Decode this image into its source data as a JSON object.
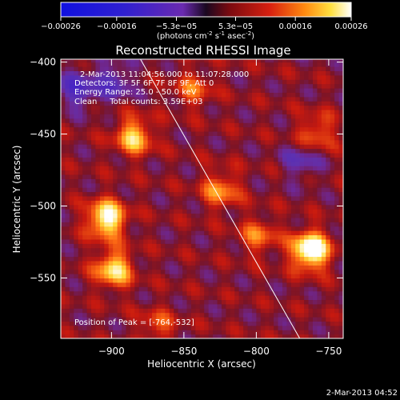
{
  "colorbar": {
    "ticks": [
      "-0.00026",
      "-0.00016",
      "-5.3e-05",
      "5.3e-05",
      "0.00016",
      "0.00026"
    ],
    "range": [
      -0.00026,
      0.00026
    ],
    "unit_label": "(photons cm",
    "unit_sup1": "-2",
    "unit_mid": " s",
    "unit_sup2": "-1",
    "unit_mid2": " asec",
    "unit_sup3": "-2",
    "unit_end": ")",
    "colormap": "RHESSI red/temperature (blue-purple negative to red-yellow-white positive)"
  },
  "chart_data": {
    "type": "heatmap",
    "title": "Reconstructed RHESSI Image",
    "xlabel": "Heliocentric X (arcsec)",
    "ylabel": "Heliocentric Y (arcsec)",
    "xlim": [
      -935,
      -740
    ],
    "ylim": [
      -592,
      -398
    ],
    "x_ticks": [
      -900,
      -850,
      -800,
      -750
    ],
    "y_ticks": [
      -400,
      -450,
      -500,
      -550
    ],
    "x_tick_labels": [
      "−900",
      "−850",
      "−800",
      "−750"
    ],
    "y_tick_labels": [
      "−400",
      "−450",
      "−500",
      "−550"
    ],
    "limb_line": [
      [
        -880,
        -398
      ],
      [
        -770,
        -592
      ]
    ],
    "sources": [
      {
        "x": -886,
        "y": -453,
        "value": 0.00016
      },
      {
        "x": -905,
        "y": -510,
        "value": 0.00022
      },
      {
        "x": -900,
        "y": -545,
        "value": 0.00018
      },
      {
        "x": -826,
        "y": -490,
        "value": 0.00012
      },
      {
        "x": -800,
        "y": -522,
        "value": 0.0001
      },
      {
        "x": -764,
        "y": -532,
        "value": 0.00026
      },
      {
        "x": -845,
        "y": -420,
        "value": 9e-05
      },
      {
        "x": -870,
        "y": -585,
        "value": 8e-05
      },
      {
        "x": -760,
        "y": -450,
        "value": 0.0001
      },
      {
        "x": -925,
        "y": -420,
        "value": -0.00012
      },
      {
        "x": -900,
        "y": -415,
        "value": -0.0001
      },
      {
        "x": -770,
        "y": -470,
        "value": -8e-05
      }
    ],
    "annotations": {
      "time_range": "2-Mar-2013 11:04:56.000 to 11:07:28.000",
      "detectors": "Detectors: 3F 5F 6F 7F 8F 9F, Att 0",
      "energy": "Energy Range: 25.0 - 50.0 keV",
      "clean": "Clean     Total counts: 3.59E+03",
      "peak": "Position of Peak = [-764,-532]"
    }
  },
  "footer": {
    "timestamp": "2-Mar-2013 04:52"
  }
}
